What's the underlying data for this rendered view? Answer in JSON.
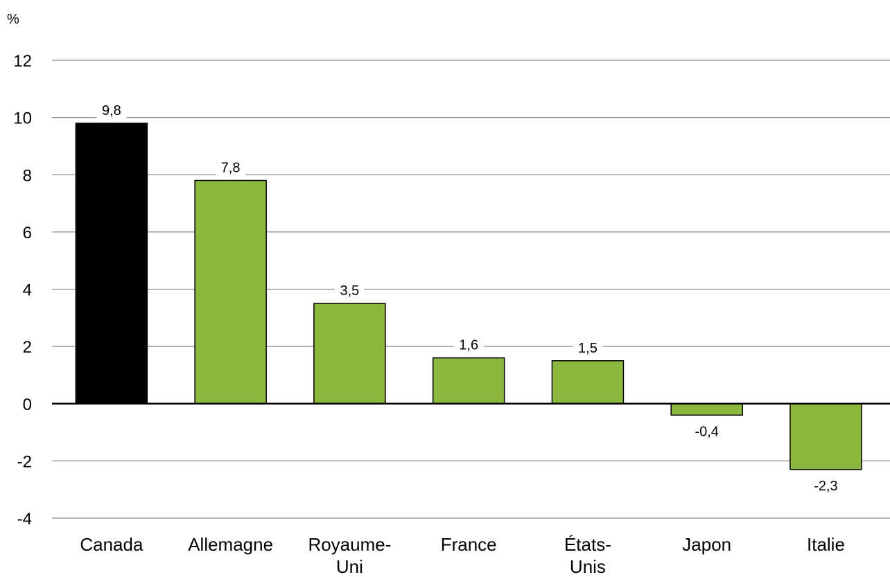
{
  "chart_data": {
    "type": "bar",
    "unit_label": "%",
    "categories": [
      [
        "Canada"
      ],
      [
        "Allemagne"
      ],
      [
        "Royaume-",
        "Uni"
      ],
      [
        "France"
      ],
      [
        "États-",
        "Unis"
      ],
      [
        "Japon"
      ],
      [
        "Italie"
      ]
    ],
    "values": [
      9.8,
      7.8,
      3.5,
      1.6,
      1.5,
      -0.4,
      -2.3
    ],
    "value_labels": [
      "9,8",
      "7,8",
      "3,5",
      "1,6",
      "1,5",
      "-0,4",
      "-2,3"
    ],
    "highlight_index": 0,
    "colors": {
      "highlight": "#000000",
      "default": "#8cb840"
    },
    "ylim": [
      -4,
      12
    ],
    "yticks": [
      12,
      10,
      8,
      6,
      4,
      2,
      0,
      -2,
      -4
    ],
    "grid": true,
    "xlabel": "",
    "ylabel": ""
  }
}
